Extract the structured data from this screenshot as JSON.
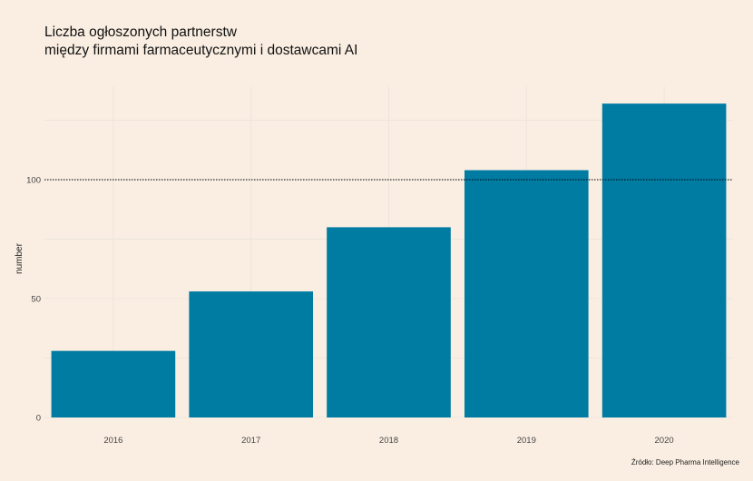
{
  "title_line1": "Liczba ogłoszonych partnerstw",
  "title_line2": "między firmami farmaceutycznymi i dostawcami AI",
  "caption": "Źródło: Deep Pharma Intelligence",
  "colors": {
    "background": "#FAEEE2",
    "bar": "#007BA2",
    "grid": "#EDE5DC",
    "reference_line": "#000000"
  },
  "chart_data": {
    "type": "bar",
    "categories": [
      "2016",
      "2017",
      "2018",
      "2019",
      "2020"
    ],
    "values": [
      28,
      53,
      80,
      104,
      132
    ],
    "xlabel": "",
    "ylabel": "number",
    "ylim": [
      0,
      138
    ],
    "yticks": [
      0,
      50,
      100
    ],
    "reference_line": 100,
    "grid": true
  }
}
